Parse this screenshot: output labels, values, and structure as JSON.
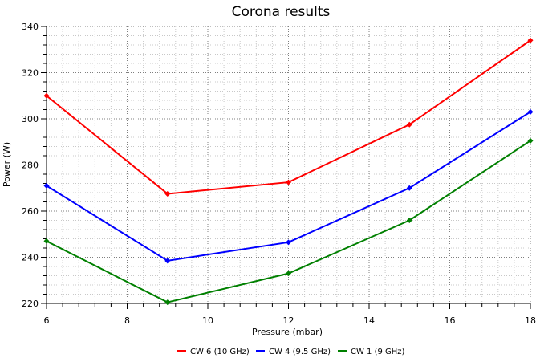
{
  "chart_data": {
    "type": "line",
    "title": "Corona results",
    "xlabel": "Pressure (mbar)",
    "ylabel": "Power (W)",
    "xlim": [
      6,
      18
    ],
    "ylim": [
      220,
      340
    ],
    "xticks": [
      6,
      8,
      10,
      12,
      14,
      16,
      18
    ],
    "yticks": [
      220,
      240,
      260,
      280,
      300,
      320,
      340
    ],
    "x": [
      6,
      9,
      12,
      15,
      18
    ],
    "grid": true,
    "legend_position": "bottom",
    "series": [
      {
        "name": "CW 6 (10 GHz)",
        "color": "#ff0000",
        "values": [
          310,
          267.5,
          272.5,
          297.5,
          334
        ]
      },
      {
        "name": "CW 4 (9.5 GHz)",
        "color": "#0000ff",
        "values": [
          271,
          238.5,
          246.5,
          270,
          303
        ]
      },
      {
        "name": "CW 1 (9 GHz)",
        "color": "#008000",
        "values": [
          247,
          220.5,
          233,
          256,
          290.5
        ]
      }
    ]
  }
}
